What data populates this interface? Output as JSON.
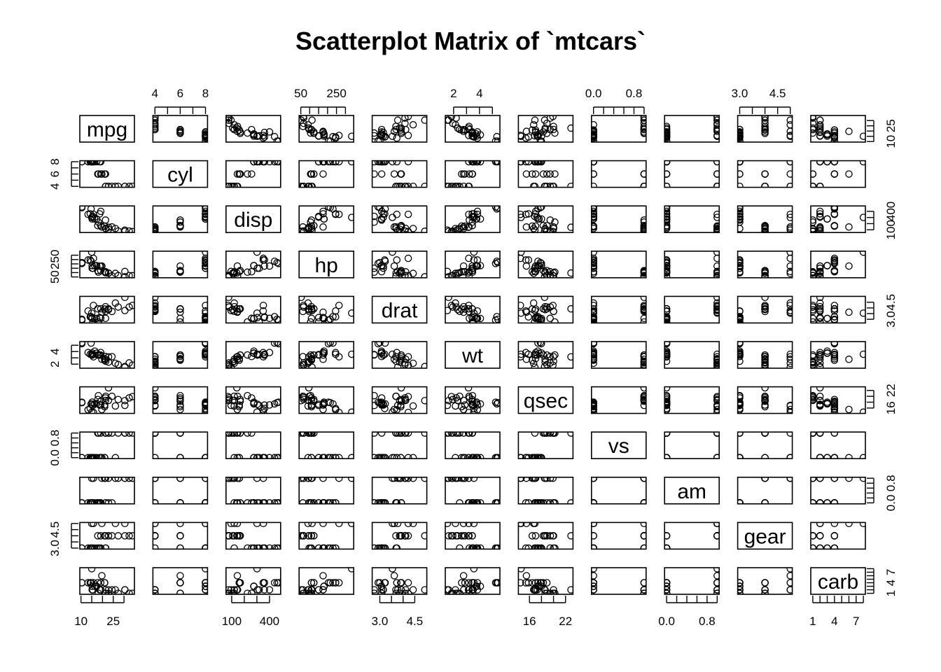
{
  "chart_data": {
    "type": "scatter",
    "title": "Scatterplot Matrix of `mtcars`",
    "variables": [
      "mpg",
      "cyl",
      "disp",
      "hp",
      "drat",
      "wt",
      "qsec",
      "vs",
      "am",
      "gear",
      "carb"
    ],
    "ranges": {
      "mpg": [
        10.4,
        33.9
      ],
      "cyl": [
        4,
        8
      ],
      "disp": [
        71.1,
        472
      ],
      "hp": [
        52,
        335
      ],
      "drat": [
        2.76,
        4.93
      ],
      "wt": [
        1.513,
        5.424
      ],
      "qsec": [
        14.5,
        22.9
      ],
      "vs": [
        0,
        1
      ],
      "am": [
        0,
        1
      ],
      "gear": [
        3,
        5
      ],
      "carb": [
        1,
        8
      ]
    },
    "axis_ticks": {
      "mpg": {
        "ticks": [
          10,
          15,
          20,
          25,
          30
        ],
        "labels": [
          {
            "value": 10,
            "text": "10"
          },
          {
            "value": 25,
            "text": "25"
          }
        ]
      },
      "cyl": {
        "ticks": [
          4,
          5,
          6,
          7,
          8
        ],
        "labels": [
          {
            "value": 4,
            "text": "4"
          },
          {
            "value": 6,
            "text": "6"
          },
          {
            "value": 8,
            "text": "8"
          }
        ]
      },
      "disp": {
        "ticks": [
          100,
          200,
          300,
          400
        ],
        "labels": [
          {
            "value": 100,
            "text": "100"
          },
          {
            "value": 400,
            "text": "400"
          }
        ]
      },
      "hp": {
        "ticks": [
          50,
          100,
          150,
          200,
          250,
          300
        ],
        "labels": [
          {
            "value": 50,
            "text": "50"
          },
          {
            "value": 250,
            "text": "250"
          }
        ]
      },
      "drat": {
        "ticks": [
          3.0,
          3.5,
          4.0,
          4.5
        ],
        "labels": [
          {
            "value": 3.0,
            "text": "3.0"
          },
          {
            "value": 4.5,
            "text": "4.5"
          }
        ]
      },
      "wt": {
        "ticks": [
          2,
          3,
          4,
          5
        ],
        "labels": [
          {
            "value": 2,
            "text": "2"
          },
          {
            "value": 4,
            "text": "4"
          }
        ]
      },
      "qsec": {
        "ticks": [
          16,
          18,
          20,
          22
        ],
        "labels": [
          {
            "value": 16,
            "text": "16"
          },
          {
            "value": 22,
            "text": "22"
          }
        ]
      },
      "vs": {
        "ticks": [
          0.0,
          0.2,
          0.4,
          0.6,
          0.8,
          1.0
        ],
        "labels": [
          {
            "value": 0.0,
            "text": "0.0"
          },
          {
            "value": 0.8,
            "text": "0.8"
          }
        ]
      },
      "am": {
        "ticks": [
          0.0,
          0.2,
          0.4,
          0.6,
          0.8,
          1.0
        ],
        "labels": [
          {
            "value": 0.0,
            "text": "0.0"
          },
          {
            "value": 0.8,
            "text": "0.8"
          }
        ]
      },
      "gear": {
        "ticks": [
          3.0,
          3.5,
          4.0,
          4.5,
          5.0
        ],
        "labels": [
          {
            "value": 3.0,
            "text": "3.0"
          },
          {
            "value": 4.5,
            "text": "4.5"
          }
        ]
      },
      "carb": {
        "ticks": [
          1,
          2,
          3,
          4,
          5,
          6,
          7,
          8
        ],
        "labels": [
          {
            "value": 1,
            "text": "1"
          },
          {
            "value": 4,
            "text": "4"
          },
          {
            "value": 7,
            "text": "7"
          }
        ]
      }
    },
    "data": [
      [
        21.0,
        6,
        160.0,
        110,
        3.9,
        2.62,
        16.46,
        0,
        1,
        4,
        4
      ],
      [
        21.0,
        6,
        160.0,
        110,
        3.9,
        2.875,
        17.02,
        0,
        1,
        4,
        4
      ],
      [
        22.8,
        4,
        108.0,
        93,
        3.85,
        2.32,
        18.61,
        1,
        1,
        4,
        1
      ],
      [
        21.4,
        6,
        258.0,
        110,
        3.08,
        3.215,
        19.44,
        1,
        0,
        3,
        1
      ],
      [
        18.7,
        8,
        360.0,
        175,
        3.15,
        3.44,
        17.02,
        0,
        0,
        3,
        2
      ],
      [
        18.1,
        6,
        225.0,
        105,
        2.76,
        3.46,
        20.22,
        1,
        0,
        3,
        1
      ],
      [
        14.3,
        8,
        360.0,
        245,
        3.21,
        3.57,
        15.84,
        0,
        0,
        3,
        4
      ],
      [
        24.4,
        4,
        146.7,
        62,
        3.69,
        3.19,
        20.0,
        1,
        0,
        4,
        2
      ],
      [
        22.8,
        4,
        140.8,
        95,
        3.92,
        3.15,
        22.9,
        1,
        0,
        4,
        2
      ],
      [
        19.2,
        6,
        167.6,
        123,
        3.92,
        3.44,
        18.3,
        1,
        0,
        4,
        4
      ],
      [
        17.8,
        6,
        167.6,
        123,
        3.92,
        3.44,
        18.9,
        1,
        0,
        4,
        4
      ],
      [
        16.4,
        8,
        275.8,
        180,
        3.07,
        4.07,
        17.4,
        0,
        0,
        3,
        3
      ],
      [
        17.3,
        8,
        275.8,
        180,
        3.07,
        3.73,
        17.6,
        0,
        0,
        3,
        3
      ],
      [
        15.2,
        8,
        275.8,
        180,
        3.07,
        3.78,
        18.0,
        0,
        0,
        3,
        3
      ],
      [
        10.4,
        8,
        472.0,
        205,
        2.93,
        5.25,
        17.98,
        0,
        0,
        3,
        4
      ],
      [
        10.4,
        8,
        460.0,
        215,
        3.0,
        5.424,
        17.82,
        0,
        0,
        3,
        4
      ],
      [
        14.7,
        8,
        440.0,
        230,
        3.23,
        5.345,
        17.42,
        0,
        0,
        3,
        4
      ],
      [
        32.4,
        4,
        78.7,
        66,
        4.08,
        2.2,
        19.47,
        1,
        1,
        4,
        1
      ],
      [
        30.4,
        4,
        75.7,
        52,
        4.93,
        1.615,
        18.52,
        1,
        1,
        4,
        2
      ],
      [
        33.9,
        4,
        71.1,
        65,
        4.22,
        1.835,
        19.9,
        1,
        1,
        4,
        1
      ],
      [
        21.5,
        4,
        120.1,
        97,
        3.7,
        2.465,
        20.01,
        1,
        0,
        3,
        1
      ],
      [
        15.5,
        8,
        318.0,
        150,
        2.76,
        3.52,
        16.87,
        0,
        0,
        3,
        2
      ],
      [
        15.2,
        8,
        304.0,
        150,
        3.15,
        3.435,
        17.3,
        0,
        0,
        3,
        2
      ],
      [
        13.3,
        8,
        350.0,
        245,
        3.73,
        3.84,
        15.41,
        0,
        0,
        3,
        4
      ],
      [
        19.2,
        8,
        400.0,
        175,
        3.08,
        3.845,
        17.05,
        0,
        0,
        3,
        2
      ],
      [
        27.3,
        4,
        79.0,
        66,
        4.08,
        1.935,
        18.9,
        1,
        1,
        4,
        1
      ],
      [
        26.0,
        4,
        120.3,
        91,
        4.43,
        2.14,
        16.7,
        0,
        1,
        5,
        2
      ],
      [
        30.4,
        4,
        95.1,
        113,
        3.77,
        1.513,
        16.9,
        1,
        1,
        5,
        2
      ],
      [
        15.8,
        8,
        351.0,
        264,
        4.22,
        3.17,
        14.5,
        0,
        1,
        5,
        4
      ],
      [
        19.7,
        6,
        145.0,
        175,
        3.62,
        2.77,
        15.5,
        0,
        1,
        5,
        6
      ],
      [
        15.0,
        8,
        301.0,
        335,
        3.54,
        3.57,
        14.6,
        0,
        1,
        5,
        8
      ],
      [
        21.4,
        4,
        121.0,
        109,
        4.11,
        2.78,
        18.6,
        1,
        1,
        4,
        2
      ]
    ],
    "grid": false,
    "legend": "none"
  }
}
